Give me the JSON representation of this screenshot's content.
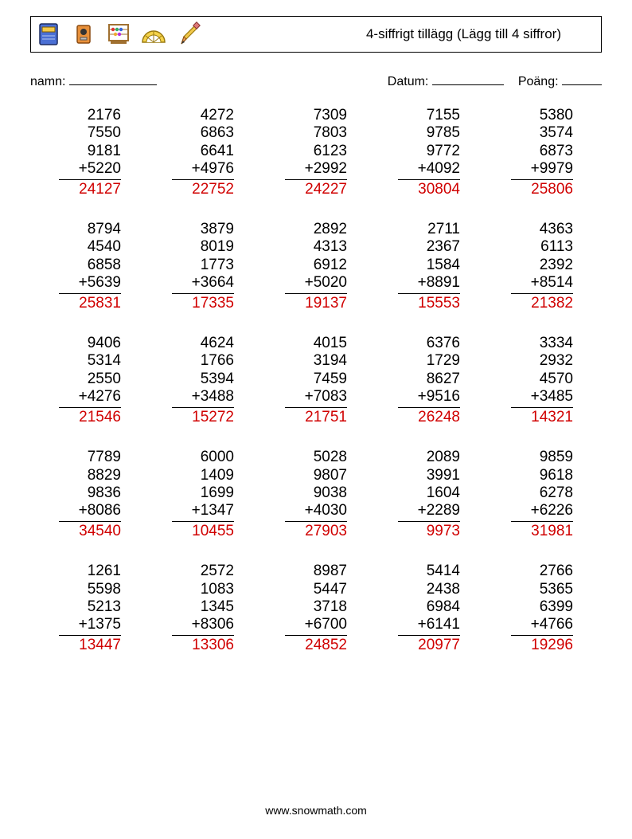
{
  "title": "4-siffrigt tillägg (Lägg till 4 siffror)",
  "labels": {
    "name": "namn:",
    "date": "Datum:",
    "score": "Poäng:"
  },
  "footer": "www.snowmath.com",
  "style": {
    "answer_color": "#d00000",
    "text_color": "#000000",
    "rule_color": "#000000",
    "background": "#ffffff",
    "font_size_problem": 19,
    "columns": 5,
    "rows": 5
  },
  "icons": [
    "book-icon",
    "sharpener-icon",
    "abacus-icon",
    "protractor-icon",
    "pencil-icon"
  ],
  "problems": [
    {
      "addends": [
        2176,
        7550,
        9181,
        5220
      ],
      "answer": 24127
    },
    {
      "addends": [
        4272,
        6863,
        6641,
        4976
      ],
      "answer": 22752
    },
    {
      "addends": [
        7309,
        7803,
        6123,
        2992
      ],
      "answer": 24227
    },
    {
      "addends": [
        7155,
        9785,
        9772,
        4092
      ],
      "answer": 30804
    },
    {
      "addends": [
        5380,
        3574,
        6873,
        9979
      ],
      "answer": 25806
    },
    {
      "addends": [
        8794,
        4540,
        6858,
        5639
      ],
      "answer": 25831
    },
    {
      "addends": [
        3879,
        8019,
        1773,
        3664
      ],
      "answer": 17335
    },
    {
      "addends": [
        2892,
        4313,
        6912,
        5020
      ],
      "answer": 19137
    },
    {
      "addends": [
        2711,
        2367,
        1584,
        8891
      ],
      "answer": 15553
    },
    {
      "addends": [
        4363,
        6113,
        2392,
        8514
      ],
      "answer": 21382
    },
    {
      "addends": [
        9406,
        5314,
        2550,
        4276
      ],
      "answer": 21546
    },
    {
      "addends": [
        4624,
        1766,
        5394,
        3488
      ],
      "answer": 15272
    },
    {
      "addends": [
        4015,
        3194,
        7459,
        7083
      ],
      "answer": 21751
    },
    {
      "addends": [
        6376,
        1729,
        8627,
        9516
      ],
      "answer": 26248
    },
    {
      "addends": [
        3334,
        2932,
        4570,
        3485
      ],
      "answer": 14321
    },
    {
      "addends": [
        7789,
        8829,
        9836,
        8086
      ],
      "answer": 34540
    },
    {
      "addends": [
        6000,
        1409,
        1699,
        1347
      ],
      "answer": 10455
    },
    {
      "addends": [
        5028,
        9807,
        9038,
        4030
      ],
      "answer": 27903
    },
    {
      "addends": [
        2089,
        3991,
        1604,
        2289
      ],
      "answer": 9973
    },
    {
      "addends": [
        9859,
        9618,
        6278,
        6226
      ],
      "answer": 31981
    },
    {
      "addends": [
        1261,
        5598,
        5213,
        1375
      ],
      "answer": 13447
    },
    {
      "addends": [
        2572,
        1083,
        1345,
        8306
      ],
      "answer": 13306
    },
    {
      "addends": [
        8987,
        5447,
        3718,
        6700
      ],
      "answer": 24852
    },
    {
      "addends": [
        5414,
        2438,
        6984,
        6141
      ],
      "answer": 20977
    },
    {
      "addends": [
        2766,
        5365,
        6399,
        4766
      ],
      "answer": 19296
    }
  ]
}
